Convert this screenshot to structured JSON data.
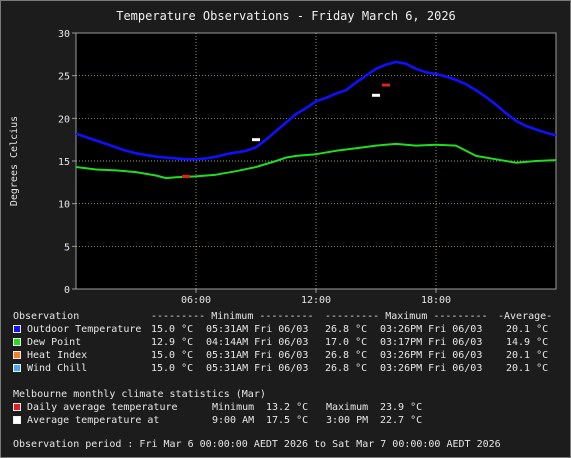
{
  "chart_data": {
    "type": "line",
    "title": "Temperature Observations - Friday March 6, 2026",
    "ylabel": "Degrees Celcius",
    "xlabel": "",
    "ylim": [
      0,
      30
    ],
    "yticks": [
      0,
      5,
      10,
      15,
      20,
      25,
      30
    ],
    "xlim_hours": [
      0,
      24
    ],
    "xticks": [
      {
        "hour": 6,
        "label": "06:00"
      },
      {
        "hour": 12,
        "label": "12:00"
      },
      {
        "hour": 18,
        "label": "18:00"
      }
    ],
    "grid": true,
    "series": [
      {
        "name": "Outdoor Temperature",
        "color": "#1010ff",
        "x": [
          0,
          0.5,
          1,
          1.5,
          2,
          2.5,
          3,
          3.5,
          4,
          4.5,
          5,
          5.5,
          6,
          6.5,
          7,
          7.5,
          8,
          8.5,
          9,
          9.5,
          10,
          10.5,
          11,
          11.5,
          12,
          12.5,
          13,
          13.5,
          14,
          14.5,
          15,
          15.5,
          16,
          16.5,
          17,
          17.5,
          18,
          18.5,
          19,
          19.5,
          20,
          20.5,
          21,
          21.5,
          22,
          22.5,
          23,
          23.5,
          24
        ],
        "y": [
          18.2,
          17.8,
          17.4,
          17.0,
          16.6,
          16.2,
          15.9,
          15.7,
          15.5,
          15.4,
          15.3,
          15.2,
          15.2,
          15.3,
          15.5,
          15.8,
          16.0,
          16.2,
          16.6,
          17.5,
          18.5,
          19.5,
          20.5,
          21.2,
          22.0,
          22.4,
          22.9,
          23.3,
          24.2,
          25.0,
          25.8,
          26.3,
          26.6,
          26.4,
          25.8,
          25.4,
          25.2,
          24.9,
          24.5,
          24.0,
          23.3,
          22.5,
          21.6,
          20.6,
          19.7,
          19.1,
          18.7,
          18.3,
          18.0
        ]
      },
      {
        "name": "Dew Point",
        "color": "#20dd20",
        "x": [
          0,
          1,
          2,
          3,
          4,
          4.5,
          5,
          6,
          7,
          8,
          9,
          10,
          10.5,
          11,
          12,
          13,
          14,
          15,
          16,
          17,
          18,
          19,
          20,
          21,
          22,
          23,
          24
        ],
        "y": [
          14.3,
          14.0,
          13.9,
          13.7,
          13.3,
          13.0,
          13.1,
          13.2,
          13.4,
          13.8,
          14.3,
          15.0,
          15.4,
          15.6,
          15.8,
          16.2,
          16.5,
          16.8,
          17.0,
          16.8,
          16.9,
          16.8,
          15.6,
          15.2,
          14.8,
          15.0,
          15.1
        ]
      },
      {
        "name": "Heat Index",
        "color": "#f08030",
        "x": [],
        "y": []
      },
      {
        "name": "Wind Chill",
        "color": "#4aa8f0",
        "x": [],
        "y": []
      }
    ],
    "markers": [
      {
        "hour": 5.5,
        "value": 13.2,
        "color": "#e02020",
        "label": "Daily average minimum"
      },
      {
        "hour": 15.5,
        "value": 23.9,
        "color": "#e02020",
        "label": "Daily average maximum"
      },
      {
        "hour": 9.0,
        "value": 17.5,
        "color": "#ffffff",
        "label": "Average temperature at 9:00 AM"
      },
      {
        "hour": 15.0,
        "value": 22.7,
        "color": "#ffffff",
        "label": "Average temperature at 3:00 PM"
      }
    ]
  },
  "legend": {
    "header": {
      "observation": "Observation",
      "minimum": "--------- Minimum ---------",
      "maximum": "--------- Maximum ---------",
      "average": "-Average-"
    },
    "rows": [
      {
        "name": "Outdoor Temperature",
        "color": "#1010ff",
        "min": "15.0 °C",
        "min_at": "05:31AM Fri 06/03",
        "max": "26.8 °C",
        "max_at": "03:26PM Fri 06/03",
        "avg": "20.1 °C"
      },
      {
        "name": "Dew Point",
        "color": "#20dd20",
        "min": "12.9 °C",
        "min_at": "04:14AM Fri 06/03",
        "max": "17.0 °C",
        "max_at": "03:17PM Fri 06/03",
        "avg": "14.9 °C"
      },
      {
        "name": "Heat Index",
        "color": "#f08030",
        "min": "15.0 °C",
        "min_at": "05:31AM Fri 06/03",
        "max": "26.8 °C",
        "max_at": "03:26PM Fri 06/03",
        "avg": "20.1 °C"
      },
      {
        "name": "Wind Chill",
        "color": "#4aa8f0",
        "min": "15.0 °C",
        "min_at": "05:31AM Fri 06/03",
        "max": "26.8 °C",
        "max_at": "03:26PM Fri 06/03",
        "avg": "20.1 °C"
      }
    ]
  },
  "climate": {
    "header": "Melbourne monthly climate statistics (Mar)",
    "rows": [
      {
        "name": "Daily average temperature",
        "color": "#e02020",
        "a_label": "Minimum",
        "a_value": "13.2 °C",
        "b_label": "Maximum",
        "b_value": "23.9 °C"
      },
      {
        "name": "Average temperature at",
        "color": "#ffffff",
        "a_label": "9:00 AM",
        "a_value": "17.5 °C",
        "b_label": "3:00 PM",
        "b_value": "22.7 °C"
      }
    ]
  },
  "footer": "Observation period : Fri Mar 6 00:00:00 AEDT 2026 to Sat Mar 7 00:00:00 AEDT 2026"
}
